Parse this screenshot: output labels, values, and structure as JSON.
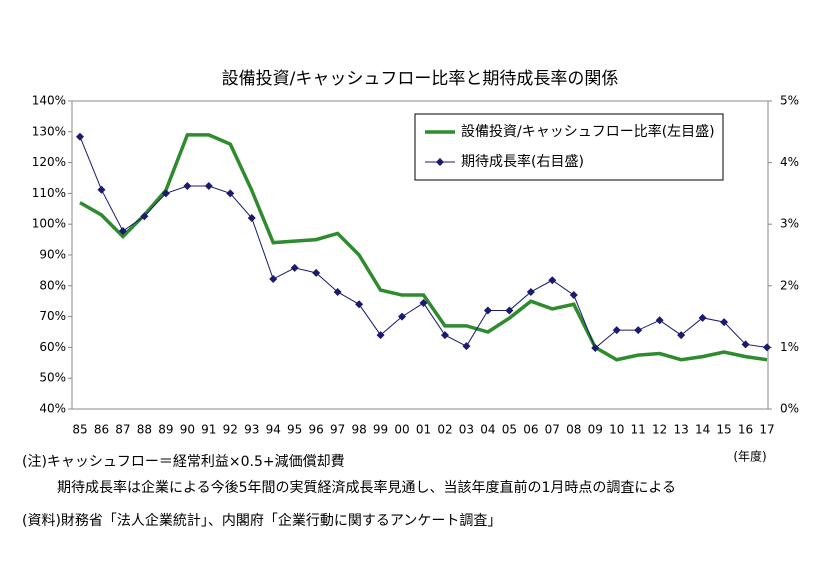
{
  "chart_data": {
    "type": "line",
    "title": "設備投資/キャッシュフロー比率と期待成長率の関係",
    "categories": [
      "85",
      "86",
      "87",
      "88",
      "89",
      "90",
      "91",
      "92",
      "93",
      "94",
      "95",
      "96",
      "97",
      "98",
      "99",
      "00",
      "01",
      "02",
      "03",
      "04",
      "05",
      "06",
      "07",
      "08",
      "09",
      "10",
      "11",
      "12",
      "13",
      "14",
      "15",
      "16",
      "17"
    ],
    "x_unit_label": "(年度)",
    "series": [
      {
        "name": "設備投資/キャッシュフロー比率(左目盛)",
        "color": "#2e8b2e",
        "axis": "y",
        "values": [
          107,
          103,
          96,
          103,
          111,
          129,
          129,
          126,
          111,
          94,
          94.5,
          95,
          97,
          90,
          78.6,
          77,
          77,
          67,
          67,
          65,
          69.5,
          75,
          72.5,
          74,
          60,
          56,
          57.5,
          58,
          56,
          57,
          58.5,
          57,
          56
        ]
      },
      {
        "name": "期待成長率(右目盛)",
        "color": "#1a1a6e",
        "axis": "y2",
        "values": [
          4.42,
          3.56,
          2.89,
          3.13,
          3.5,
          3.62,
          3.62,
          3.5,
          3.1,
          2.11,
          2.29,
          2.21,
          1.9,
          1.7,
          1.2,
          1.5,
          1.72,
          1.2,
          1.02,
          1.6,
          1.6,
          1.9,
          2.09,
          1.85,
          0.99,
          1.28,
          1.28,
          1.44,
          1.2,
          1.48,
          1.41,
          1.05,
          1.0
        ]
      }
    ],
    "ylim": [
      40,
      140
    ],
    "yticks": [
      {
        "value": 40,
        "label": "40%"
      },
      {
        "value": 50,
        "label": "50%"
      },
      {
        "value": 60,
        "label": "60%"
      },
      {
        "value": 70,
        "label": "70%"
      },
      {
        "value": 80,
        "label": "80%"
      },
      {
        "value": 90,
        "label": "90%"
      },
      {
        "value": 100,
        "label": "100%"
      },
      {
        "value": 110,
        "label": "110%"
      },
      {
        "value": 120,
        "label": "120%"
      },
      {
        "value": 130,
        "label": "130%"
      },
      {
        "value": 140,
        "label": "140%"
      }
    ],
    "y2lim": [
      0,
      5
    ],
    "y2ticks": [
      {
        "value": 0,
        "label": "0%"
      },
      {
        "value": 1,
        "label": "1%"
      },
      {
        "value": 2,
        "label": "2%"
      },
      {
        "value": 3,
        "label": "3%"
      },
      {
        "value": 4,
        "label": "4%"
      },
      {
        "value": 5,
        "label": "5%"
      }
    ],
    "grid": false,
    "legend": "upper right",
    "notes": [
      "(注)キャッシュフロー＝経常利益×0.5+減価償却費",
      "期待成長率は企業による今後5年間の実質経済成長率見通し、当該年度直前の1月時点の調査による",
      "(資料)財務省「法人企業統計」、内閣府「企業行動に関するアンケート調査」"
    ]
  }
}
